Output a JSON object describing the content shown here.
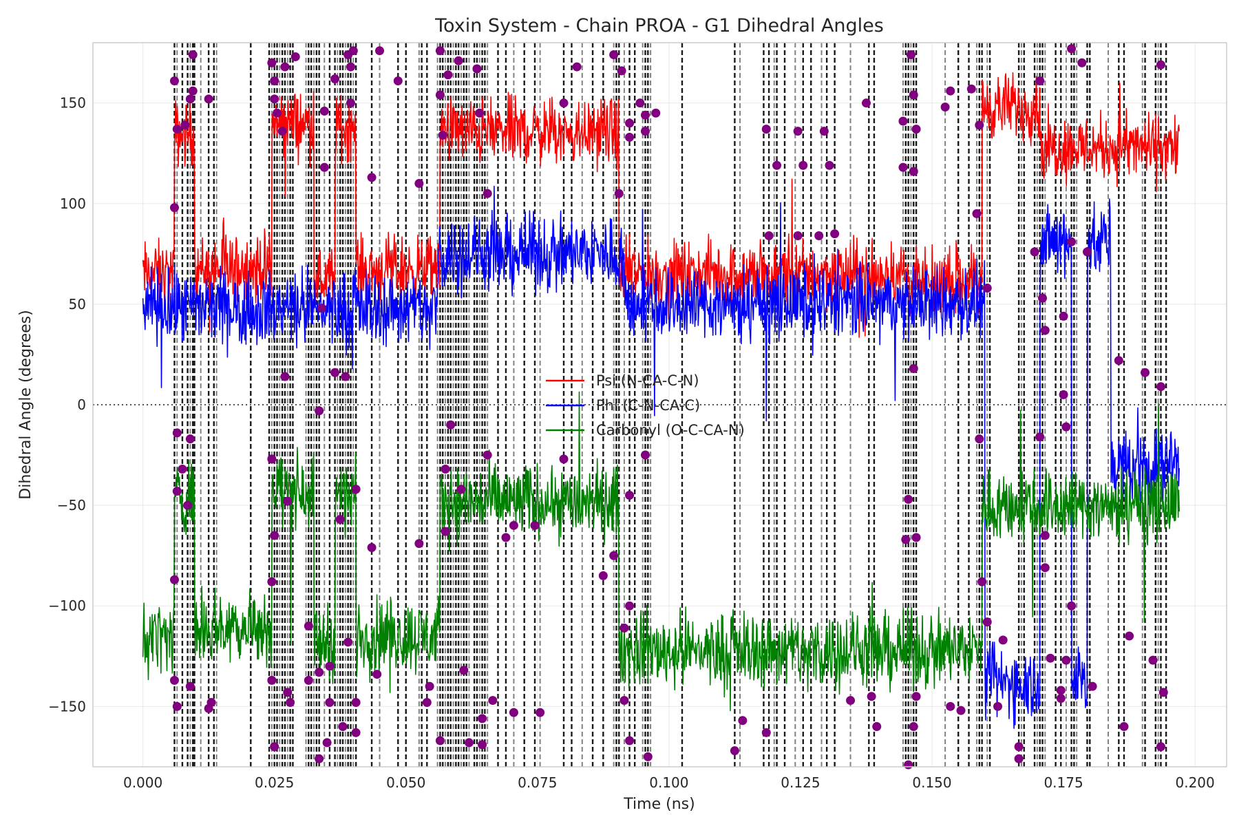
{
  "chart_data": {
    "type": "line",
    "title": "Toxin System - Chain PROA - G1 Dihedral Angles",
    "xlabel": "Time (ns)",
    "ylabel": "Dihedral Angle (degrees)",
    "xlim": [
      -0.0095,
      0.206
    ],
    "ylim": [
      -180,
      180
    ],
    "xticks": [
      0.0,
      0.025,
      0.05,
      0.075,
      0.1,
      0.125,
      0.15,
      0.175,
      0.2
    ],
    "xtick_labels": [
      "0.000",
      "0.025",
      "0.050",
      "0.075",
      "0.100",
      "0.125",
      "0.150",
      "0.175",
      "0.200"
    ],
    "yticks": [
      -150,
      -100,
      -50,
      0,
      50,
      100,
      150
    ],
    "ytick_labels": [
      "−150",
      "−100",
      "−50",
      "0",
      "50",
      "100",
      "150"
    ],
    "grid": true,
    "legend_position": "center",
    "zero_line": true,
    "series": [
      {
        "name": "Psi (N-CA-C-N)",
        "color": "#ff0000",
        "noise": 8,
        "segments": [
          [
            0.0,
            0.006,
            65
          ],
          [
            0.006,
            0.0098,
            135
          ],
          [
            0.0098,
            0.0245,
            68
          ],
          [
            0.0245,
            0.0325,
            140
          ],
          [
            0.0325,
            0.0365,
            62
          ],
          [
            0.0365,
            0.0405,
            138
          ],
          [
            0.0405,
            0.0565,
            67
          ],
          [
            0.0565,
            0.0905,
            136
          ],
          [
            0.0905,
            0.1455,
            65
          ],
          [
            0.1455,
            0.1595,
            60
          ],
          [
            0.1595,
            0.1705,
            148
          ],
          [
            0.1705,
            0.197,
            128
          ]
        ]
      },
      {
        "name": "Phi (C-N-CA-C)",
        "color": "#0000ff",
        "noise": 9,
        "segments": [
          [
            0.0,
            0.056,
            48
          ],
          [
            0.056,
            0.0915,
            75
          ],
          [
            0.0915,
            0.16,
            50
          ],
          [
            0.16,
            0.1705,
            -138
          ],
          [
            0.1705,
            0.1765,
            80
          ],
          [
            0.1765,
            0.1795,
            -135
          ],
          [
            0.1795,
            0.184,
            80
          ],
          [
            0.184,
            0.197,
            -30
          ]
        ]
      },
      {
        "name": "Carbonyl (O-C-CA-N)",
        "color": "#008000",
        "noise": 9,
        "segments": [
          [
            0.0,
            0.006,
            -115
          ],
          [
            0.006,
            0.0098,
            -45
          ],
          [
            0.0098,
            0.0245,
            -110
          ],
          [
            0.0245,
            0.0325,
            -42
          ],
          [
            0.0325,
            0.0365,
            -118
          ],
          [
            0.0365,
            0.0405,
            -45
          ],
          [
            0.0405,
            0.0565,
            -115
          ],
          [
            0.0565,
            0.0905,
            -48
          ],
          [
            0.0905,
            0.1595,
            -122
          ],
          [
            0.1595,
            0.197,
            -50
          ]
        ]
      }
    ],
    "transitions": [
      0.006,
      0.0065,
      0.0075,
      0.0085,
      0.009,
      0.0095,
      0.0098,
      0.011,
      0.0125,
      0.0135,
      0.014,
      0.0205,
      0.024,
      0.0245,
      0.025,
      0.0255,
      0.026,
      0.0265,
      0.027,
      0.0275,
      0.028,
      0.0285,
      0.031,
      0.0315,
      0.032,
      0.0325,
      0.033,
      0.0335,
      0.0345,
      0.0355,
      0.0365,
      0.037,
      0.0375,
      0.038,
      0.0385,
      0.039,
      0.0395,
      0.04,
      0.0405,
      0.0435,
      0.045,
      0.0485,
      0.05,
      0.0525,
      0.053,
      0.054,
      0.056,
      0.0565,
      0.057,
      0.0575,
      0.058,
      0.0585,
      0.059,
      0.0595,
      0.06,
      0.0605,
      0.061,
      0.0615,
      0.062,
      0.063,
      0.0635,
      0.064,
      0.0645,
      0.065,
      0.0655,
      0.0675,
      0.069,
      0.0705,
      0.0725,
      0.0745,
      0.0755,
      0.08,
      0.0815,
      0.0835,
      0.0855,
      0.0875,
      0.0895,
      0.09,
      0.0905,
      0.0915,
      0.0925,
      0.0935,
      0.095,
      0.0955,
      0.096,
      0.0965,
      0.1025,
      0.1125,
      0.1135,
      0.118,
      0.119,
      0.12,
      0.1205,
      0.122,
      0.124,
      0.1255,
      0.127,
      0.129,
      0.13,
      0.1315,
      0.1345,
      0.138,
      0.139,
      0.1445,
      0.145,
      0.1455,
      0.146,
      0.1465,
      0.147,
      0.1525,
      0.155,
      0.157,
      0.1585,
      0.159,
      0.1595,
      0.1605,
      0.161,
      0.1665,
      0.167,
      0.1675,
      0.1695,
      0.17,
      0.1705,
      0.171,
      0.1715,
      0.1735,
      0.1745,
      0.1755,
      0.1765,
      0.177,
      0.1775,
      0.1795,
      0.18,
      0.1835,
      0.1855,
      0.1865,
      0.19,
      0.1905,
      0.1925,
      0.193,
      0.1935,
      0.1945
    ],
    "transition_points": [
      [
        0.006,
        161
      ],
      [
        0.006,
        98
      ],
      [
        0.0065,
        137
      ],
      [
        0.0065,
        -14
      ],
      [
        0.0065,
        -43
      ],
      [
        0.006,
        -87
      ],
      [
        0.006,
        -137
      ],
      [
        0.0065,
        -150
      ],
      [
        0.008,
        139
      ],
      [
        0.0075,
        -32
      ],
      [
        0.009,
        152
      ],
      [
        0.009,
        -17
      ],
      [
        0.0095,
        174
      ],
      [
        0.0095,
        156
      ],
      [
        0.0085,
        -50
      ],
      [
        0.009,
        -140
      ],
      [
        0.0125,
        152
      ],
      [
        0.013,
        -148
      ],
      [
        0.0125,
        -151
      ],
      [
        0.0245,
        170
      ],
      [
        0.025,
        161
      ],
      [
        0.025,
        152
      ],
      [
        0.0255,
        145
      ],
      [
        0.0245,
        -27
      ],
      [
        0.025,
        -65
      ],
      [
        0.0245,
        -88
      ],
      [
        0.0245,
        -137
      ],
      [
        0.025,
        -170
      ],
      [
        0.027,
        168
      ],
      [
        0.0265,
        136
      ],
      [
        0.027,
        14
      ],
      [
        0.0275,
        -48
      ],
      [
        0.0275,
        -143
      ],
      [
        0.028,
        -148
      ],
      [
        0.029,
        173
      ],
      [
        0.0315,
        -110
      ],
      [
        0.0315,
        -137
      ],
      [
        0.0335,
        -3
      ],
      [
        0.0335,
        -176
      ],
      [
        0.0335,
        -133
      ],
      [
        0.0345,
        146
      ],
      [
        0.0345,
        118
      ],
      [
        0.034,
        48
      ],
      [
        0.035,
        -168
      ],
      [
        0.0355,
        -148
      ],
      [
        0.0355,
        -130
      ],
      [
        0.0365,
        162
      ],
      [
        0.0365,
        16
      ],
      [
        0.0375,
        -57
      ],
      [
        0.038,
        -160
      ],
      [
        0.039,
        174
      ],
      [
        0.0395,
        168
      ],
      [
        0.0385,
        14
      ],
      [
        0.039,
        -118
      ],
      [
        0.04,
        176
      ],
      [
        0.0395,
        150
      ],
      [
        0.0405,
        -42
      ],
      [
        0.0405,
        -148
      ],
      [
        0.0405,
        -163
      ],
      [
        0.0435,
        113
      ],
      [
        0.0435,
        -71
      ],
      [
        0.0445,
        -134
      ],
      [
        0.045,
        176
      ],
      [
        0.0485,
        161
      ],
      [
        0.0525,
        110
      ],
      [
        0.0525,
        -69
      ],
      [
        0.054,
        -148
      ],
      [
        0.0545,
        -140
      ],
      [
        0.0565,
        176
      ],
      [
        0.0565,
        154
      ],
      [
        0.057,
        134
      ],
      [
        0.0575,
        -32
      ],
      [
        0.0575,
        -63
      ],
      [
        0.0565,
        -167
      ],
      [
        0.058,
        164
      ],
      [
        0.0585,
        -10
      ],
      [
        0.06,
        171
      ],
      [
        0.0605,
        -42
      ],
      [
        0.061,
        -132
      ],
      [
        0.062,
        -168
      ],
      [
        0.0635,
        167
      ],
      [
        0.064,
        145
      ],
      [
        0.0645,
        -156
      ],
      [
        0.0645,
        -169
      ],
      [
        0.0655,
        105
      ],
      [
        0.0655,
        -25
      ],
      [
        0.0665,
        -147
      ],
      [
        0.069,
        -66
      ],
      [
        0.0705,
        -60
      ],
      [
        0.0705,
        -153
      ],
      [
        0.0745,
        -60
      ],
      [
        0.0755,
        -153
      ],
      [
        0.08,
        150
      ],
      [
        0.08,
        -27
      ],
      [
        0.0825,
        168
      ],
      [
        0.0875,
        -85
      ],
      [
        0.0895,
        174
      ],
      [
        0.0895,
        -75
      ],
      [
        0.0905,
        105
      ],
      [
        0.091,
        166
      ],
      [
        0.0915,
        -111
      ],
      [
        0.0915,
        -147
      ],
      [
        0.0925,
        140
      ],
      [
        0.0925,
        133
      ],
      [
        0.0925,
        -45
      ],
      [
        0.0925,
        -167
      ],
      [
        0.0925,
        -100
      ],
      [
        0.0945,
        150
      ],
      [
        0.0955,
        144
      ],
      [
        0.0955,
        136
      ],
      [
        0.0955,
        -25
      ],
      [
        0.096,
        -175
      ],
      [
        0.0975,
        145
      ],
      [
        0.1125,
        -172
      ],
      [
        0.114,
        -157
      ],
      [
        0.1185,
        137
      ],
      [
        0.1185,
        -163
      ],
      [
        0.119,
        84
      ],
      [
        0.1205,
        119
      ],
      [
        0.1245,
        136
      ],
      [
        0.1245,
        84
      ],
      [
        0.1255,
        119
      ],
      [
        0.1285,
        84
      ],
      [
        0.1295,
        136
      ],
      [
        0.1305,
        119
      ],
      [
        0.1315,
        85
      ],
      [
        0.1345,
        -147
      ],
      [
        0.1375,
        150
      ],
      [
        0.1385,
        -145
      ],
      [
        0.1395,
        -160
      ],
      [
        0.1445,
        141
      ],
      [
        0.1445,
        118
      ],
      [
        0.145,
        -67
      ],
      [
        0.1455,
        -47
      ],
      [
        0.1455,
        -179
      ],
      [
        0.146,
        174
      ],
      [
        0.1465,
        154
      ],
      [
        0.147,
        137
      ],
      [
        0.1465,
        116
      ],
      [
        0.1465,
        18
      ],
      [
        0.147,
        -66
      ],
      [
        0.147,
        -145
      ],
      [
        0.1465,
        -160
      ],
      [
        0.1525,
        148
      ],
      [
        0.1535,
        156
      ],
      [
        0.1535,
        -150
      ],
      [
        0.1575,
        157
      ],
      [
        0.1555,
        -152
      ],
      [
        0.1585,
        95
      ],
      [
        0.159,
        139
      ],
      [
        0.159,
        -17
      ],
      [
        0.1595,
        -88
      ],
      [
        0.1605,
        58
      ],
      [
        0.1605,
        -108
      ],
      [
        0.1625,
        -150
      ],
      [
        0.1635,
        -117
      ],
      [
        0.1665,
        -170
      ],
      [
        0.1665,
        -176
      ],
      [
        0.1705,
        161
      ],
      [
        0.1695,
        76
      ],
      [
        0.1705,
        -16
      ],
      [
        0.171,
        53
      ],
      [
        0.1715,
        37
      ],
      [
        0.1715,
        -65
      ],
      [
        0.1715,
        -81
      ],
      [
        0.1725,
        -126
      ],
      [
        0.1745,
        -142
      ],
      [
        0.1745,
        -146
      ],
      [
        0.175,
        44
      ],
      [
        0.175,
        5
      ],
      [
        0.1755,
        -11
      ],
      [
        0.1755,
        -127
      ],
      [
        0.1765,
        177
      ],
      [
        0.1765,
        81
      ],
      [
        0.1765,
        -100
      ],
      [
        0.1785,
        170
      ],
      [
        0.1795,
        76
      ],
      [
        0.1805,
        -140
      ],
      [
        0.1855,
        22
      ],
      [
        0.1865,
        -160
      ],
      [
        0.1875,
        -115
      ],
      [
        0.1905,
        16
      ],
      [
        0.192,
        -127
      ],
      [
        0.1935,
        169
      ],
      [
        0.1935,
        9
      ],
      [
        0.1935,
        -170
      ],
      [
        0.194,
        -143
      ]
    ]
  }
}
